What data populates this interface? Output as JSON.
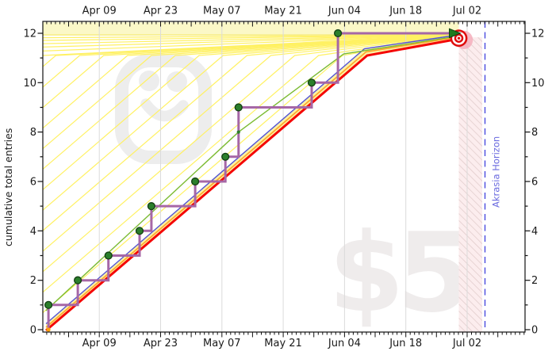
{
  "axes": {
    "date_labels": [
      "Apr 09",
      "Apr 23",
      "May 07",
      "May 21",
      "Jun 04",
      "Jun 18",
      "Jul 02"
    ],
    "y_tick_labels": [
      "0",
      "2",
      "4",
      "6",
      "8",
      "10",
      "12"
    ],
    "ylabel": "cumulative total entries"
  },
  "annotations": {
    "akrasia_horizon_label": "Akrasia Horizon",
    "pledge_watermark": "$5",
    "logo_watermark": "beeminder-smiley-logo"
  },
  "colors": {
    "road_red": "#f40606",
    "road_orange": "#ffa72b",
    "road_blue": "#5353d6",
    "road_fill": "#fcf3a4",
    "guideline_yellow": "#fff163",
    "safe_band_fill": "#fbf8c7",
    "trend_green": "#7cbb33",
    "data_purple": "#a667a6",
    "dot_green": "#2b7f2b",
    "start_dot_orange": "#ffa10a",
    "danger_fill": "#fcedee",
    "danger_hatch": "#e7d3d3",
    "akrasia_blue": "#4a4adf",
    "gridline": "#dbdbdb",
    "watermark_gray": "#ededed"
  },
  "chart_data": {
    "type": "line",
    "title": "",
    "ylabel": "cumulative total entries",
    "x_tick_label_interval_days": 14,
    "x_minor_tick_interval_days": 1,
    "x_major_tick_interval_days": 7,
    "x_unit": "days relative to the Jul 02 gridline (negative = earlier)",
    "y_range": [
      0,
      12.5
    ],
    "y_tick_step": 2,
    "grid": "vertical only",
    "legend": "none",
    "data_series": {
      "name": "cumulative entries (purple step line, green dots)",
      "points": [
        {
          "d": -95.6,
          "v": 1,
          "date_approx": "Mar 28"
        },
        {
          "d": -88.9,
          "v": 2,
          "date_approx": "Apr 04"
        },
        {
          "d": -81.9,
          "v": 3,
          "date_approx": "Apr 11"
        },
        {
          "d": -74.8,
          "v": 4,
          "date_approx": "Apr 18"
        },
        {
          "d": -72.1,
          "v": 5,
          "date_approx": "Apr 21"
        },
        {
          "d": -62.1,
          "v": 6,
          "date_approx": "Apr 30"
        },
        {
          "d": -55.2,
          "v": 7,
          "date_approx": "May 07"
        },
        {
          "d": -52.2,
          "v": 9,
          "date_approx": "May 10"
        },
        {
          "d": -35.5,
          "v": 10,
          "date_approx": "May 27"
        },
        {
          "d": -29.5,
          "v": 12,
          "date_approx": "Jun 02"
        }
      ],
      "start_point": {
        "d": -95.6,
        "v": 0,
        "marker": "small orange dot"
      },
      "intermediate_small_dot": {
        "d": -52.2,
        "v": 8
      },
      "end_arrow": {
        "d": -3.5,
        "v": 12,
        "tip_d": -1.5,
        "shape": "green arrowhead into bullseye"
      }
    },
    "road": {
      "name": "yellow brick road (red/orange/blue edges)",
      "vertices": [
        {
          "d": -96.2,
          "v": 0
        },
        {
          "d": -22.8,
          "v": 11.1
        },
        {
          "d": -1.9,
          "v": 11.8
        }
      ],
      "lane_width_units": 0.29
    },
    "trend_line": {
      "name": "green trend line",
      "vertices": [
        {
          "d": -96.2,
          "v": 0.77
        },
        {
          "d": -52.2,
          "v": 8.0
        },
        {
          "d": -28.2,
          "v": 11.16
        },
        {
          "d": -1.9,
          "v": 11.89
        }
      ]
    },
    "guidelines": {
      "count": 13,
      "spacing_units": 0.83,
      "bend_value": 11.1,
      "converge_at": {
        "d": -1.9,
        "v": 11.93
      },
      "fan_left_edge_values": [
        11.82,
        11.71,
        11.58,
        11.44,
        11.28,
        11.1
      ]
    },
    "safe_zone_band": {
      "v_top": 12.44,
      "v_bottom": 11.96,
      "d_start": -96.9,
      "d_end": -1.9
    },
    "danger_zone": {
      "d_start": -1.9,
      "d_end": 3.45,
      "style": "pink hatched"
    },
    "akrasia_horizon": {
      "d": 4.07,
      "style": "blue dashed vertical line"
    },
    "goal_marker": {
      "d": -1.9,
      "v": 11.8,
      "type": "bullseye"
    }
  }
}
